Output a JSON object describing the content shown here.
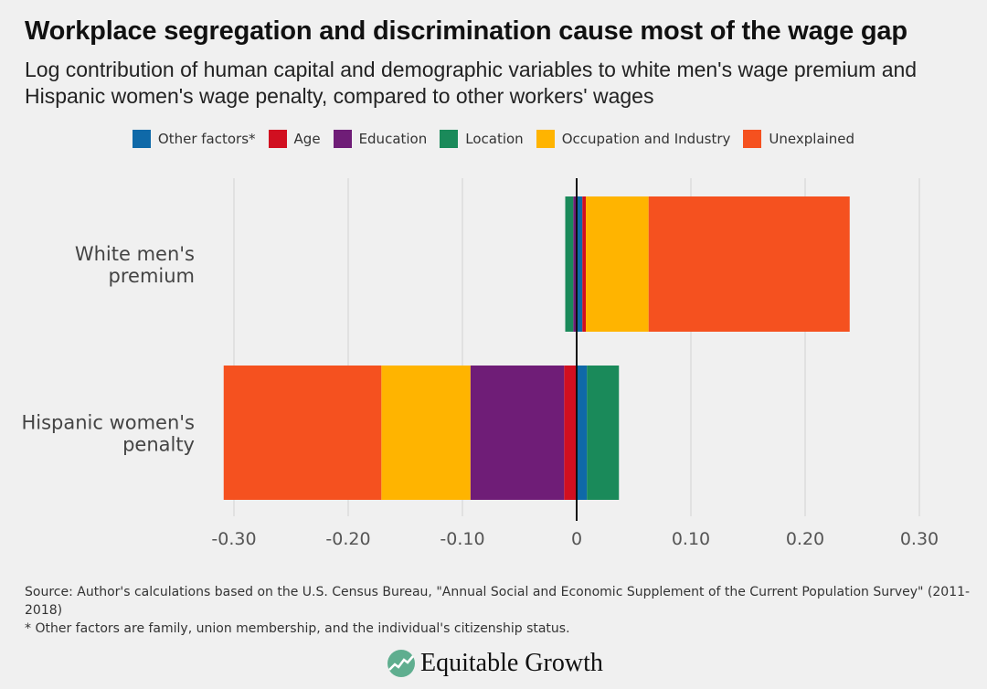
{
  "title": "Workplace segregation and discrimination cause most of the wage gap",
  "subtitle": "Log contribution of human capital and demographic variables to white men's wage premium and Hispanic women's wage penalty, compared to other workers' wages",
  "chart_data": {
    "type": "bar",
    "orientation": "horizontal",
    "stacked": true,
    "categories": [
      "White men's premium",
      "Hispanic women's penalty"
    ],
    "series": [
      {
        "name": "Other factors*",
        "color": "#0f69a8",
        "values": [
          0.005,
          0.009
        ]
      },
      {
        "name": "Age",
        "color": "#d10f20",
        "values": [
          0.003,
          -0.011
        ]
      },
      {
        "name": "Education",
        "color": "#6f1d77",
        "values": [
          -0.003,
          -0.082
        ]
      },
      {
        "name": "Location",
        "color": "#1a8a5a",
        "values": [
          -0.007,
          0.028
        ]
      },
      {
        "name": "Occupation and Industry",
        "color": "#ffb400",
        "values": [
          0.055,
          -0.078
        ]
      },
      {
        "name": "Unexplained",
        "color": "#f5511f",
        "values": [
          0.176,
          -0.138
        ]
      }
    ],
    "xlim": [
      -0.3,
      0.3
    ],
    "xticks": [
      -0.3,
      -0.2,
      -0.1,
      0,
      0.1,
      0.2,
      0.3
    ],
    "xtick_labels": [
      "-0.30",
      "-0.20",
      "-0.10",
      "0",
      "0.10",
      "0.20",
      "0.30"
    ],
    "grid": true,
    "legend": "top"
  },
  "source": "Source: Author's calculations based on the U.S. Census Bureau, \"Annual Social and Economic Supplement of the Current Population Survey\" (2011-2018)",
  "footnote": "* Other factors are family, union membership, and the individual's citizenship status.",
  "logo": "Equitable Growth"
}
